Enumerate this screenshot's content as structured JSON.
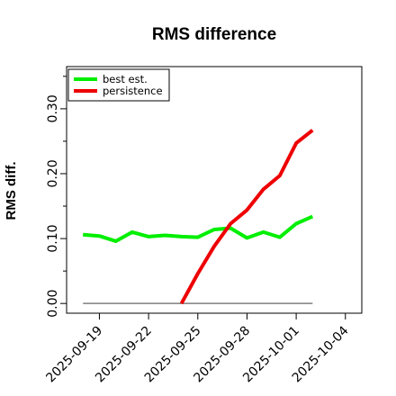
{
  "chart_data": {
    "type": "line",
    "title": "RMS difference",
    "xlabel": "",
    "ylabel": "RMS diff.",
    "x": [
      "2025-09-18",
      "2025-09-19",
      "2025-09-20",
      "2025-09-21",
      "2025-09-22",
      "2025-09-23",
      "2025-09-24",
      "2025-09-25",
      "2025-09-26",
      "2025-09-27",
      "2025-09-28",
      "2025-09-29",
      "2025-09-30",
      "2025-10-01",
      "2025-10-02"
    ],
    "xlim": [
      "2025-09-17",
      "2025-10-05"
    ],
    "ylim": [
      -0.015,
      0.365
    ],
    "x_ticks": [
      "2025-09-19",
      "2025-09-22",
      "2025-09-25",
      "2025-09-28",
      "2025-10-01",
      "2025-10-04"
    ],
    "y_ticks": [
      0.0,
      0.1,
      0.2,
      0.3
    ],
    "y_tick_labels": [
      "0.00",
      "0.10",
      "0.20",
      "0.30"
    ],
    "y_minor_ticks": [
      0.05,
      0.15,
      0.25,
      0.35
    ],
    "grid": false,
    "legend_position": "top-left",
    "baseline": {
      "y": 0.0,
      "from": "2025-09-18",
      "to": "2025-10-02",
      "color": "#7f7f7f"
    },
    "series": [
      {
        "name": "best est.",
        "color": "#00ee00",
        "x": [
          "2025-09-18",
          "2025-09-19",
          "2025-09-20",
          "2025-09-21",
          "2025-09-22",
          "2025-09-23",
          "2025-09-24",
          "2025-09-25",
          "2025-09-26",
          "2025-09-27",
          "2025-09-28",
          "2025-09-29",
          "2025-09-30",
          "2025-10-01",
          "2025-10-02"
        ],
        "values": [
          0.106,
          0.104,
          0.096,
          0.11,
          0.103,
          0.105,
          0.103,
          0.102,
          0.114,
          0.116,
          0.101,
          0.11,
          0.102,
          0.123,
          0.134
        ]
      },
      {
        "name": "persistence",
        "color": "#ee0000",
        "x": [
          "2025-09-24",
          "2025-09-25",
          "2025-09-26",
          "2025-09-27",
          "2025-09-28",
          "2025-09-29",
          "2025-09-30",
          "2025-10-01",
          "2025-10-02"
        ],
        "values": [
          0.0,
          0.046,
          0.088,
          0.123,
          0.144,
          0.176,
          0.197,
          0.247,
          0.267
        ]
      }
    ]
  }
}
